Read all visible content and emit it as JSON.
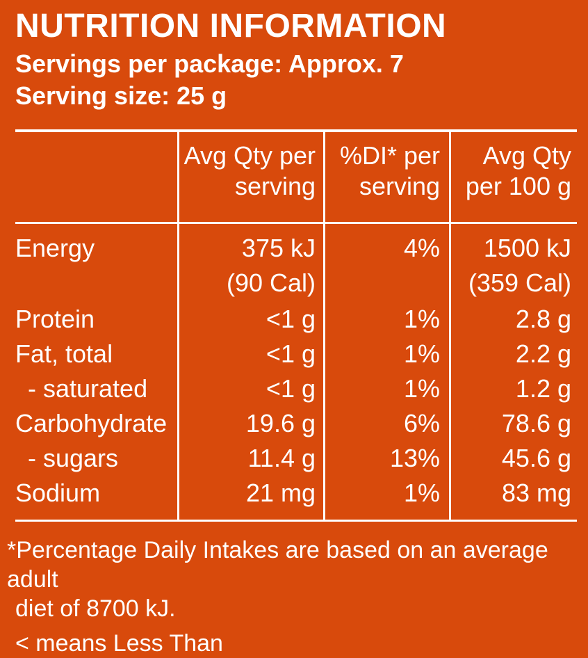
{
  "title": "NUTRITION INFORMATION",
  "servings_per_package": "Servings per package: Approx. 7",
  "serving_size": "Serving size: 25 g",
  "colors": {
    "background": "#d84a0c",
    "text": "#ffffff"
  },
  "table": {
    "headers": [
      {
        "line1": "Avg Qty per",
        "line2": "serving"
      },
      {
        "line1": "%DI* per",
        "line2": "serving"
      },
      {
        "line1": "Avg Qty",
        "line2": "per 100 g"
      }
    ],
    "rows": [
      {
        "name": "Energy",
        "per_serving": "375 kJ",
        "per_serving_2": "(90 Cal)",
        "di": "4%",
        "per_100g": "1500 kJ",
        "per_100g_2": "(359 Cal)"
      },
      {
        "name": "Protein",
        "per_serving": "<1 g",
        "di": "1%",
        "per_100g": "2.8 g"
      },
      {
        "name": "Fat, total",
        "per_serving": "<1 g",
        "di": "1%",
        "per_100g": "2.2 g"
      },
      {
        "name": "- saturated",
        "per_serving": "<1 g",
        "di": "1%",
        "per_100g": "1.2 g"
      },
      {
        "name": "Carbohydrate",
        "per_serving": "19.6 g",
        "di": "6%",
        "per_100g": "78.6 g"
      },
      {
        "name": "- sugars",
        "per_serving": "11.4 g",
        "di": "13%",
        "per_100g": "45.6 g"
      },
      {
        "name": "Sodium",
        "per_serving": "21 mg",
        "di": "1%",
        "per_100g": "83 mg"
      }
    ]
  },
  "footnote": {
    "line1": "*Percentage Daily Intakes are based on an average adult",
    "line2": "diet of 8700 kJ.",
    "less_than": "< means Less Than"
  }
}
